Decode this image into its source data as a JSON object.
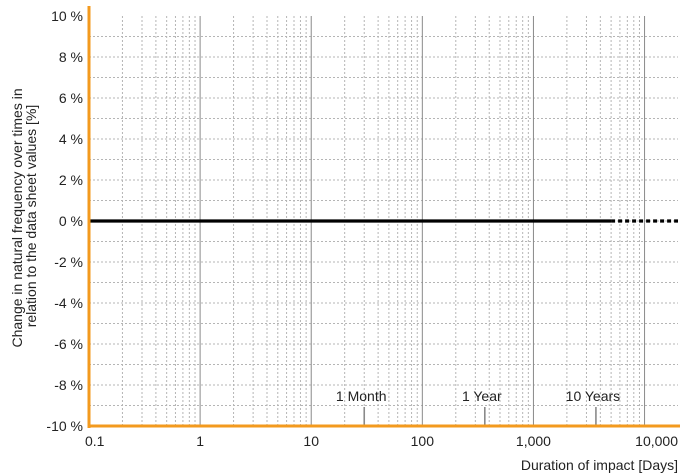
{
  "chart_data": {
    "type": "line",
    "title": "",
    "xlabel": "Duration of impact [Days]",
    "ylabel_lines": [
      "Change in natural frequency over times in",
      "relation to the data sheet values [%]"
    ],
    "x_scale": "log",
    "xlim": [
      0.1,
      20000
    ],
    "ylim": [
      -10,
      10
    ],
    "x_ticks": [
      {
        "value": 0.1,
        "label": "0.1"
      },
      {
        "value": 1,
        "label": "1"
      },
      {
        "value": 10,
        "label": "10"
      },
      {
        "value": 100,
        "label": "100"
      },
      {
        "value": 1000,
        "label": "1,000"
      },
      {
        "value": 10000,
        "label": "10,000"
      }
    ],
    "y_ticks": [
      {
        "value": 10,
        "label": "10 %"
      },
      {
        "value": 8,
        "label": "8 %"
      },
      {
        "value": 6,
        "label": "6 %"
      },
      {
        "value": 4,
        "label": "4 %"
      },
      {
        "value": 2,
        "label": "2 %"
      },
      {
        "value": 0,
        "label": "0 %"
      },
      {
        "value": -2,
        "label": "-2 %"
      },
      {
        "value": -4,
        "label": "-4 %"
      },
      {
        "value": -6,
        "label": "-6 %"
      },
      {
        "value": -8,
        "label": "-8 %"
      },
      {
        "value": -10,
        "label": "-10 %"
      }
    ],
    "series": [
      {
        "style": "solid",
        "x": [
          0.1,
          5000
        ],
        "y": [
          0,
          0
        ]
      },
      {
        "style": "dotted",
        "x": [
          5000,
          20000
        ],
        "y": [
          0,
          0
        ]
      }
    ],
    "annotations": [
      {
        "x": 30,
        "label": "1 Month"
      },
      {
        "x": 365,
        "label": "1 Year"
      },
      {
        "x": 3650,
        "label": "10 Years"
      }
    ],
    "grid": true,
    "colors": {
      "axis": "#f39a1e",
      "line": "#000000",
      "grid_major": "#8a8a8a",
      "grid_minor": "#b5b5b5",
      "marker": "#8a8a8a"
    }
  }
}
